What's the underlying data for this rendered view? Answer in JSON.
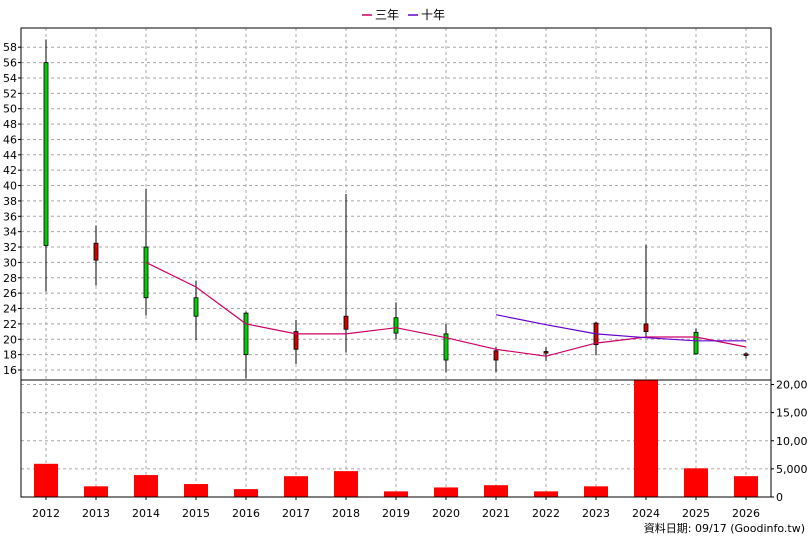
{
  "chart_data": {
    "type": "candlestick",
    "categories": [
      "2012",
      "2013",
      "2014",
      "2015",
      "2016",
      "2017",
      "2018",
      "2019",
      "2020",
      "2021",
      "2022",
      "2023",
      "2024",
      "2025",
      "2026"
    ],
    "candles": [
      {
        "year": "2012",
        "open": 32.2,
        "close": 56.0,
        "high": 59.0,
        "low": 26.2
      },
      {
        "year": "2013",
        "open": 32.5,
        "close": 30.3,
        "high": 34.8,
        "low": 27.0
      },
      {
        "year": "2014",
        "open": 25.4,
        "close": 32.0,
        "high": 39.6,
        "low": 23.1
      },
      {
        "year": "2015",
        "open": 23.0,
        "close": 25.4,
        "high": 27.6,
        "low": 19.9
      },
      {
        "year": "2016",
        "open": 18.0,
        "close": 23.4,
        "high": 23.6,
        "low": 14.9
      },
      {
        "year": "2017",
        "open": 21.0,
        "close": 18.7,
        "high": 22.5,
        "low": 16.8
      },
      {
        "year": "2018",
        "open": 23.0,
        "close": 21.3,
        "high": 38.9,
        "low": 18.3
      },
      {
        "year": "2019",
        "open": 20.8,
        "close": 22.8,
        "high": 24.8,
        "low": 20.0
      },
      {
        "year": "2020",
        "open": 17.3,
        "close": 20.7,
        "high": 22.0,
        "low": 15.7
      },
      {
        "year": "2021",
        "open": 18.5,
        "close": 17.3,
        "high": 19.0,
        "low": 15.7
      },
      {
        "year": "2022",
        "open": 18.4,
        "close": 18.2,
        "high": 19.0,
        "low": 17.2
      },
      {
        "year": "2023",
        "open": 22.1,
        "close": 19.3,
        "high": 22.3,
        "low": 17.9
      },
      {
        "year": "2024",
        "open": 22.0,
        "close": 21.0,
        "high": 32.3,
        "low": 20.3
      },
      {
        "year": "2025",
        "open": 18.1,
        "close": 20.9,
        "high": 21.4,
        "low": 18.0
      },
      {
        "year": "2026",
        "open": 18.1,
        "close": 17.9,
        "high": 18.3,
        "low": 17.5
      }
    ],
    "series": [
      {
        "name": "三年",
        "color": "#cc0066",
        "values": [
          null,
          null,
          30.0,
          26.8,
          22.0,
          20.7,
          20.7,
          21.5,
          20.2,
          18.7,
          17.8,
          19.5,
          20.3,
          20.3,
          19.0
        ]
      },
      {
        "name": "十年",
        "color": "#6600cc",
        "values": [
          null,
          null,
          null,
          null,
          null,
          null,
          null,
          null,
          null,
          23.2,
          21.9,
          20.7,
          20.2,
          19.8,
          19.8
        ]
      }
    ],
    "volume": [
      5900,
      1900,
      3900,
      2300,
      1400,
      3700,
      4600,
      1000,
      1700,
      2100,
      1000,
      1900,
      20800,
      5100,
      3700
    ],
    "price_ticks": [
      16,
      18,
      20,
      22,
      24,
      26,
      28,
      30,
      32,
      34,
      36,
      38,
      40,
      42,
      44,
      46,
      48,
      50,
      52,
      54,
      56,
      58
    ],
    "price_range": [
      14.7,
      60.5
    ],
    "volume_ticks": [
      0,
      5000,
      10000,
      15000,
      20000
    ],
    "volume_tick_labels": [
      "0",
      "5,000",
      "10,000",
      "15,000",
      "20,000"
    ],
    "volume_range": [
      0,
      20800
    ],
    "grid": true,
    "legend_position": "top-center",
    "colors": {
      "up": "#00cc00",
      "down": "#cc0000",
      "volume": "#ff0000"
    }
  },
  "footer_note": "資料日期: 09/17  (Goodinfo.tw)"
}
